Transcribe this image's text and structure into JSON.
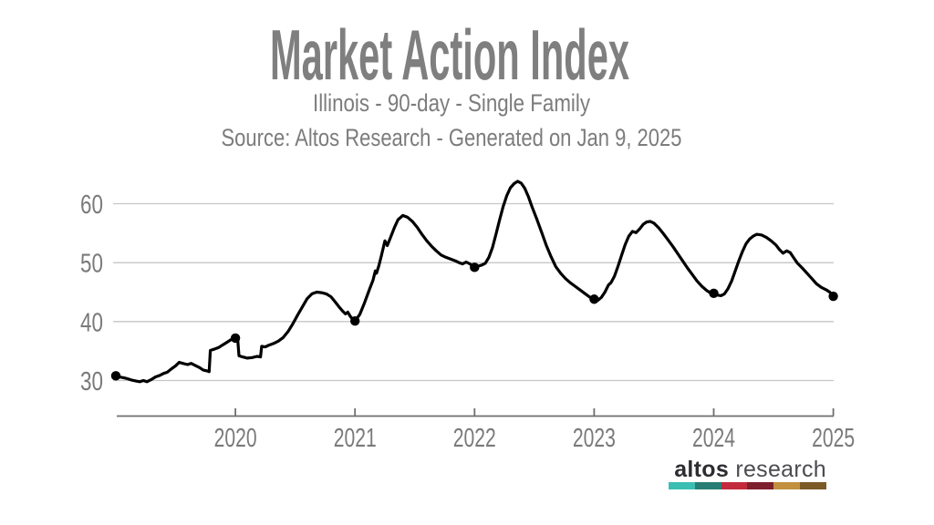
{
  "chart_data": {
    "type": "line",
    "title": "Market Action Index",
    "subtitle": "Illinois - 90-day - Single Family",
    "source": "Source: Altos Research - Generated on Jan 9, 2025",
    "x_tick_years": [
      2020,
      2021,
      2022,
      2023,
      2024,
      2025
    ],
    "x_tick_labels": [
      "2020",
      "2021",
      "2022",
      "2023",
      "2024",
      "2025"
    ],
    "y_ticks": [
      30,
      40,
      50,
      60
    ],
    "xlim": [
      2019.0,
      2025.02
    ],
    "ylim": [
      24,
      66
    ],
    "grid": "horizontal-only",
    "legend": "none",
    "line_color": "#000000",
    "grid_color": "#c6c6c6",
    "axis_color": "#6f6f6f",
    "text_color": "#7c7c7c",
    "marker_points": [
      [
        2019.0,
        30.8
      ],
      [
        2020.0,
        37.2
      ],
      [
        2021.0,
        40.1
      ],
      [
        2022.0,
        49.2
      ],
      [
        2023.0,
        43.8
      ],
      [
        2024.0,
        44.8
      ],
      [
        2025.0,
        44.3
      ]
    ],
    "series": [
      {
        "name": "Market Action Index",
        "points": [
          [
            2019.0,
            30.8
          ],
          [
            2019.03,
            30.6
          ],
          [
            2019.06,
            30.5
          ],
          [
            2019.1,
            30.3
          ],
          [
            2019.13,
            30.1
          ],
          [
            2019.17,
            29.9
          ],
          [
            2019.2,
            29.8
          ],
          [
            2019.23,
            30.0
          ],
          [
            2019.26,
            29.8
          ],
          [
            2019.3,
            30.2
          ],
          [
            2019.33,
            30.6
          ],
          [
            2019.37,
            30.9
          ],
          [
            2019.4,
            31.2
          ],
          [
            2019.43,
            31.4
          ],
          [
            2019.46,
            31.9
          ],
          [
            2019.5,
            32.5
          ],
          [
            2019.53,
            33.1
          ],
          [
            2019.56,
            32.9
          ],
          [
            2019.6,
            32.7
          ],
          [
            2019.63,
            32.9
          ],
          [
            2019.66,
            32.6
          ],
          [
            2019.7,
            32.2
          ],
          [
            2019.73,
            31.8
          ],
          [
            2019.77,
            31.6
          ],
          [
            2019.78,
            31.5
          ],
          [
            2019.79,
            35.1
          ],
          [
            2019.82,
            35.3
          ],
          [
            2019.86,
            35.6
          ],
          [
            2019.89,
            36.0
          ],
          [
            2019.93,
            36.5
          ],
          [
            2019.96,
            36.9
          ],
          [
            2020.0,
            37.2
          ],
          [
            2020.02,
            36.8
          ],
          [
            2020.03,
            34.2
          ],
          [
            2020.06,
            34.0
          ],
          [
            2020.1,
            33.8
          ],
          [
            2020.14,
            33.9
          ],
          [
            2020.18,
            34.1
          ],
          [
            2020.21,
            34.0
          ],
          [
            2020.22,
            35.8
          ],
          [
            2020.25,
            35.7
          ],
          [
            2020.28,
            36.0
          ],
          [
            2020.32,
            36.3
          ],
          [
            2020.36,
            36.7
          ],
          [
            2020.4,
            37.3
          ],
          [
            2020.44,
            38.3
          ],
          [
            2020.48,
            39.6
          ],
          [
            2020.52,
            41.1
          ],
          [
            2020.56,
            42.5
          ],
          [
            2020.6,
            43.9
          ],
          [
            2020.64,
            44.7
          ],
          [
            2020.68,
            45.0
          ],
          [
            2020.72,
            44.9
          ],
          [
            2020.76,
            44.7
          ],
          [
            2020.8,
            44.2
          ],
          [
            2020.84,
            43.2
          ],
          [
            2020.87,
            42.4
          ],
          [
            2020.9,
            41.7
          ],
          [
            2020.92,
            41.3
          ],
          [
            2020.94,
            41.6
          ],
          [
            2020.96,
            40.9
          ],
          [
            2020.98,
            40.4
          ],
          [
            2021.0,
            40.1
          ],
          [
            2021.04,
            41.2
          ],
          [
            2021.08,
            43.2
          ],
          [
            2021.12,
            45.4
          ],
          [
            2021.15,
            47.0
          ],
          [
            2021.17,
            48.6
          ],
          [
            2021.18,
            48.2
          ],
          [
            2021.2,
            49.5
          ],
          [
            2021.22,
            51.1
          ],
          [
            2021.25,
            53.7
          ],
          [
            2021.27,
            52.9
          ],
          [
            2021.3,
            54.4
          ],
          [
            2021.33,
            56.0
          ],
          [
            2021.36,
            57.3
          ],
          [
            2021.4,
            58.0
          ],
          [
            2021.44,
            57.7
          ],
          [
            2021.48,
            57.0
          ],
          [
            2021.52,
            56.0
          ],
          [
            2021.56,
            54.8
          ],
          [
            2021.6,
            53.7
          ],
          [
            2021.64,
            52.8
          ],
          [
            2021.68,
            52.0
          ],
          [
            2021.72,
            51.3
          ],
          [
            2021.76,
            50.9
          ],
          [
            2021.8,
            50.6
          ],
          [
            2021.84,
            50.3
          ],
          [
            2021.87,
            50.0
          ],
          [
            2021.9,
            49.8
          ],
          [
            2021.93,
            50.1
          ],
          [
            2021.96,
            49.8
          ],
          [
            2022.0,
            49.2
          ],
          [
            2022.03,
            49.4
          ],
          [
            2022.06,
            49.6
          ],
          [
            2022.09,
            49.9
          ],
          [
            2022.12,
            50.9
          ],
          [
            2022.15,
            52.6
          ],
          [
            2022.18,
            54.9
          ],
          [
            2022.21,
            57.3
          ],
          [
            2022.24,
            59.6
          ],
          [
            2022.27,
            61.4
          ],
          [
            2022.3,
            62.7
          ],
          [
            2022.33,
            63.4
          ],
          [
            2022.36,
            63.8
          ],
          [
            2022.39,
            63.5
          ],
          [
            2022.42,
            62.6
          ],
          [
            2022.45,
            61.2
          ],
          [
            2022.48,
            59.5
          ],
          [
            2022.52,
            57.4
          ],
          [
            2022.56,
            55.2
          ],
          [
            2022.6,
            52.9
          ],
          [
            2022.64,
            51.0
          ],
          [
            2022.68,
            49.3
          ],
          [
            2022.72,
            48.2
          ],
          [
            2022.76,
            47.3
          ],
          [
            2022.8,
            46.6
          ],
          [
            2022.84,
            46.0
          ],
          [
            2022.88,
            45.4
          ],
          [
            2022.92,
            44.8
          ],
          [
            2022.96,
            44.2
          ],
          [
            2023.0,
            43.8
          ],
          [
            2023.03,
            43.6
          ],
          [
            2023.06,
            44.1
          ],
          [
            2023.09,
            45.0
          ],
          [
            2023.12,
            46.2
          ],
          [
            2023.14,
            46.6
          ],
          [
            2023.17,
            47.7
          ],
          [
            2023.2,
            49.4
          ],
          [
            2023.23,
            51.3
          ],
          [
            2023.26,
            53.1
          ],
          [
            2023.29,
            54.5
          ],
          [
            2023.32,
            55.3
          ],
          [
            2023.35,
            55.1
          ],
          [
            2023.38,
            55.7
          ],
          [
            2023.41,
            56.5
          ],
          [
            2023.44,
            56.9
          ],
          [
            2023.47,
            57.0
          ],
          [
            2023.5,
            56.7
          ],
          [
            2023.54,
            55.9
          ],
          [
            2023.58,
            54.9
          ],
          [
            2023.62,
            53.8
          ],
          [
            2023.66,
            52.7
          ],
          [
            2023.7,
            51.5
          ],
          [
            2023.74,
            50.3
          ],
          [
            2023.78,
            49.1
          ],
          [
            2023.82,
            48.0
          ],
          [
            2023.86,
            46.9
          ],
          [
            2023.9,
            46.0
          ],
          [
            2023.94,
            45.3
          ],
          [
            2023.97,
            44.9
          ],
          [
            2024.0,
            44.8
          ],
          [
            2024.03,
            44.5
          ],
          [
            2024.06,
            44.4
          ],
          [
            2024.09,
            44.7
          ],
          [
            2024.12,
            45.6
          ],
          [
            2024.15,
            46.9
          ],
          [
            2024.18,
            48.6
          ],
          [
            2024.21,
            50.3
          ],
          [
            2024.24,
            51.9
          ],
          [
            2024.27,
            53.2
          ],
          [
            2024.3,
            54.0
          ],
          [
            2024.33,
            54.5
          ],
          [
            2024.36,
            54.8
          ],
          [
            2024.4,
            54.7
          ],
          [
            2024.44,
            54.3
          ],
          [
            2024.48,
            53.7
          ],
          [
            2024.52,
            53.0
          ],
          [
            2024.55,
            52.2
          ],
          [
            2024.58,
            51.6
          ],
          [
            2024.61,
            52.0
          ],
          [
            2024.64,
            51.7
          ],
          [
            2024.67,
            50.8
          ],
          [
            2024.7,
            49.9
          ],
          [
            2024.74,
            49.1
          ],
          [
            2024.78,
            48.2
          ],
          [
            2024.82,
            47.3
          ],
          [
            2024.86,
            46.4
          ],
          [
            2024.9,
            45.8
          ],
          [
            2024.94,
            45.4
          ],
          [
            2024.97,
            45.0
          ],
          [
            2025.0,
            44.3
          ]
        ]
      }
    ]
  },
  "logo": {
    "brand_bold": "altos",
    "brand_light": "research",
    "bar_colors": [
      "#3abfb2",
      "#287d74",
      "#c32a3c",
      "#7e1f2d",
      "#c2903f",
      "#7c5a26"
    ]
  }
}
